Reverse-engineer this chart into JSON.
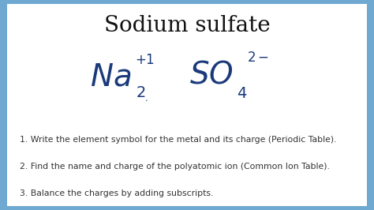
{
  "title": "Sodium sulfate",
  "title_fontsize": 20,
  "title_color": "#111111",
  "border_color": "#6fa8d0",
  "inner_bg": "#ffffff",
  "formula_color": "#1a3a7a",
  "bullet_lines": [
    "1. Write the element symbol for the metal and its charge (Periodic Table).",
    "2. Find the name and charge of the polyatomic ion (Common Ion Table).",
    "3. Balance the charges by adding subscripts."
  ],
  "bullet_fontsize": 7.8,
  "bullet_color": "#333333",
  "border_thickness": 0.018
}
